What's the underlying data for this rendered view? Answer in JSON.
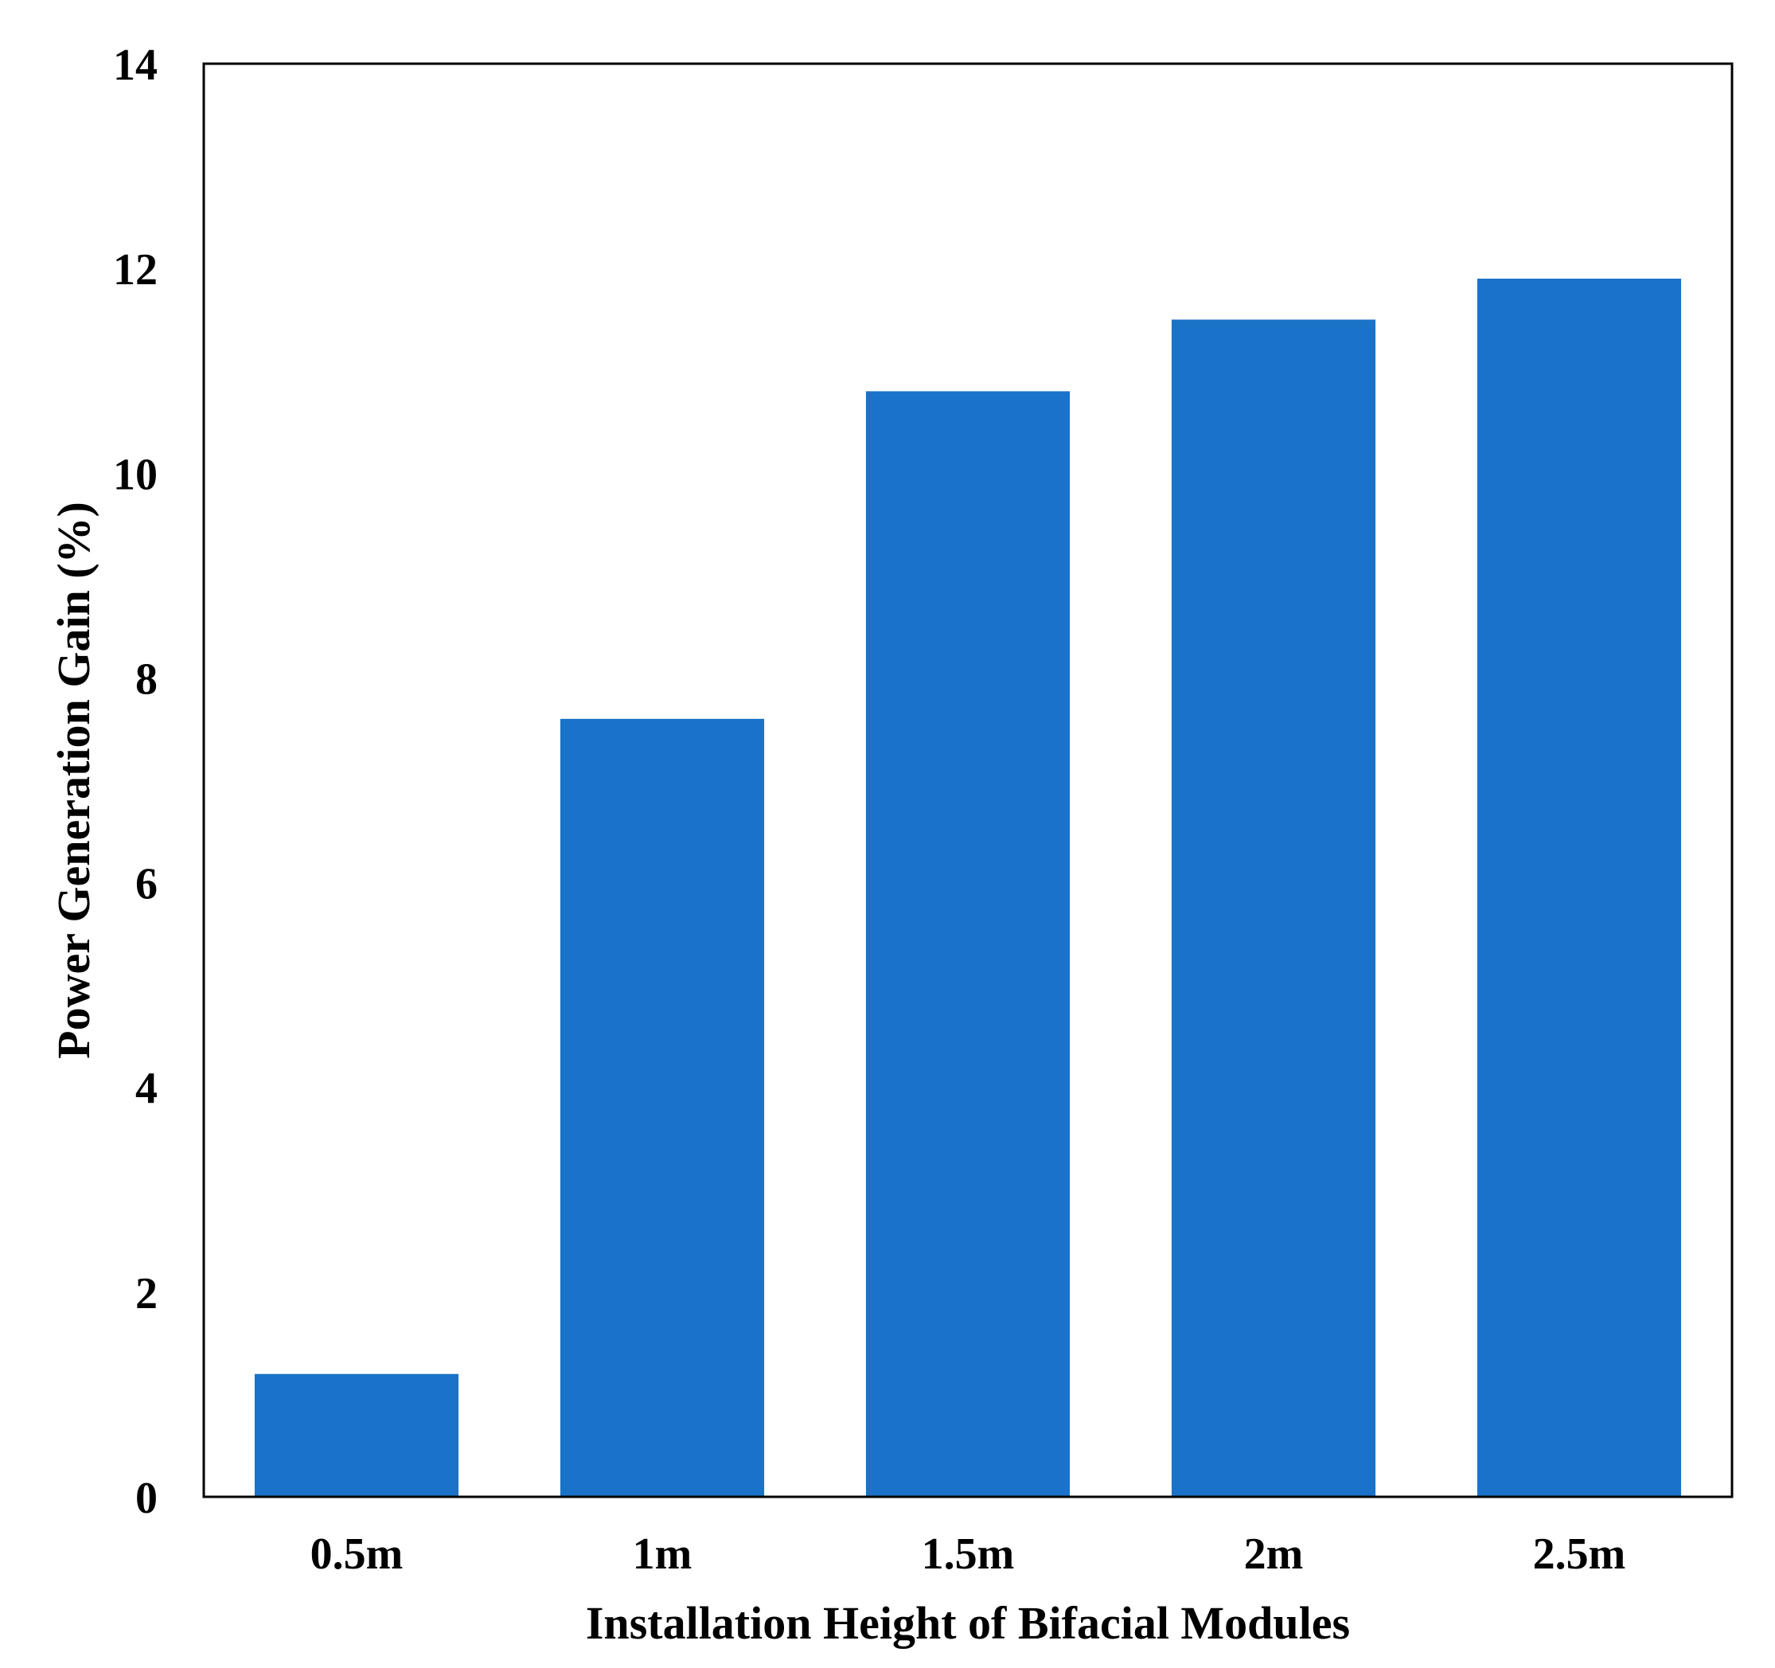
{
  "chart_data": {
    "type": "bar",
    "title": "",
    "xlabel": "Installation Height of Bifacial Modules",
    "ylabel": "Power Generation Gain (%)",
    "categories": [
      "0.5m",
      "1m",
      "1.5m",
      "2m",
      "2.5m"
    ],
    "values": [
      1.2,
      7.6,
      10.8,
      11.5,
      11.9
    ],
    "ylim": [
      0,
      14
    ],
    "yticks": [
      "0",
      "2",
      "4",
      "6",
      "8",
      "10",
      "12",
      "14"
    ],
    "grid": false,
    "legend": "none",
    "bar_color": "#1A73C8"
  }
}
